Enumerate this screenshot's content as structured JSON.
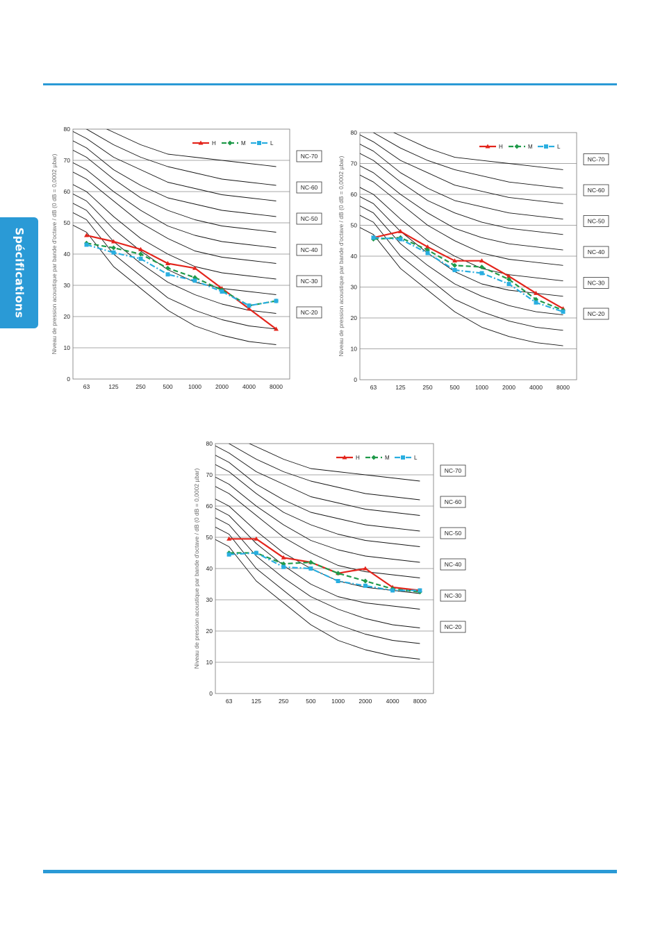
{
  "side_tab": {
    "label": "Spécifications"
  },
  "colors": {
    "accent": "#2a9ad6",
    "H": "#e3241b",
    "M": "#1f9a4a",
    "L": "#29aee0"
  },
  "chart_data": [
    {
      "type": "line",
      "ylabel": "Niveau de pression acoustique par bande d'octave / dB (0 dB = 0,0002 µbar)",
      "categories": [
        "63",
        "125",
        "250",
        "500",
        "1000",
        "2000",
        "4000",
        "8000"
      ],
      "yticks": [
        "0",
        "10",
        "20",
        "30",
        "40",
        "50",
        "60",
        "70",
        "80"
      ],
      "ylim": [
        0,
        80
      ],
      "nc_labels": [
        "NC-70",
        "NC-60",
        "NC-50",
        "NC-40",
        "NC-30",
        "NC-20"
      ],
      "legend": [
        "H",
        "M",
        "L"
      ],
      "legend_position": "top-right",
      "series": [
        {
          "name": "H",
          "values": [
            46,
            44,
            41.5,
            37,
            35.5,
            29,
            22.5,
            16
          ]
        },
        {
          "name": "M",
          "values": [
            43.5,
            42,
            40,
            35.5,
            32.5,
            28.5,
            23.5,
            25
          ]
        },
        {
          "name": "L",
          "values": [
            43,
            40.5,
            38.5,
            33.5,
            31.5,
            28,
            23.5,
            25
          ]
        }
      ]
    },
    {
      "type": "line",
      "ylabel": "Niveau de pression acoustique par bande d'octave / dB (0 dB = 0,0002 µbar)",
      "categories": [
        "63",
        "125",
        "250",
        "500",
        "1000",
        "2000",
        "4000",
        "8000"
      ],
      "yticks": [
        "0",
        "10",
        "20",
        "30",
        "40",
        "50",
        "60",
        "70",
        "80"
      ],
      "ylim": [
        0,
        80
      ],
      "nc_labels": [
        "NC-70",
        "NC-60",
        "NC-50",
        "NC-40",
        "NC-30",
        "NC-20"
      ],
      "legend": [
        "H",
        "M",
        "L"
      ],
      "legend_position": "top-right",
      "series": [
        {
          "name": "H",
          "values": [
            46,
            48,
            43,
            38.5,
            38.5,
            33.5,
            28,
            23
          ]
        },
        {
          "name": "M",
          "values": [
            45.5,
            46,
            42,
            37,
            36.5,
            32.5,
            26,
            22.5
          ]
        },
        {
          "name": "L",
          "values": [
            46,
            45.5,
            41,
            35.5,
            34.5,
            31,
            25,
            22
          ]
        }
      ]
    },
    {
      "type": "line",
      "ylabel": "Niveau de pression acoustique par bande d'octave / dB (0 dB = 0,0002 µbar)",
      "categories": [
        "63",
        "125",
        "250",
        "500",
        "1000",
        "2000",
        "4000",
        "8000"
      ],
      "yticks": [
        "0",
        "10",
        "20",
        "30",
        "40",
        "50",
        "60",
        "70",
        "80"
      ],
      "ylim": [
        0,
        80
      ],
      "nc_labels": [
        "NC-70",
        "NC-60",
        "NC-50",
        "NC-40",
        "NC-30",
        "NC-20"
      ],
      "legend": [
        "H",
        "M",
        "L"
      ],
      "legend_position": "top-right",
      "series": [
        {
          "name": "H",
          "values": [
            49.5,
            49.5,
            43.5,
            42,
            38.5,
            40,
            34,
            33
          ]
        },
        {
          "name": "M",
          "values": [
            45,
            45,
            41.5,
            42,
            38.5,
            36,
            33.5,
            32.5
          ]
        },
        {
          "name": "L",
          "values": [
            44.5,
            45,
            40.5,
            40,
            36,
            34.5,
            33,
            33
          ]
        }
      ]
    }
  ]
}
